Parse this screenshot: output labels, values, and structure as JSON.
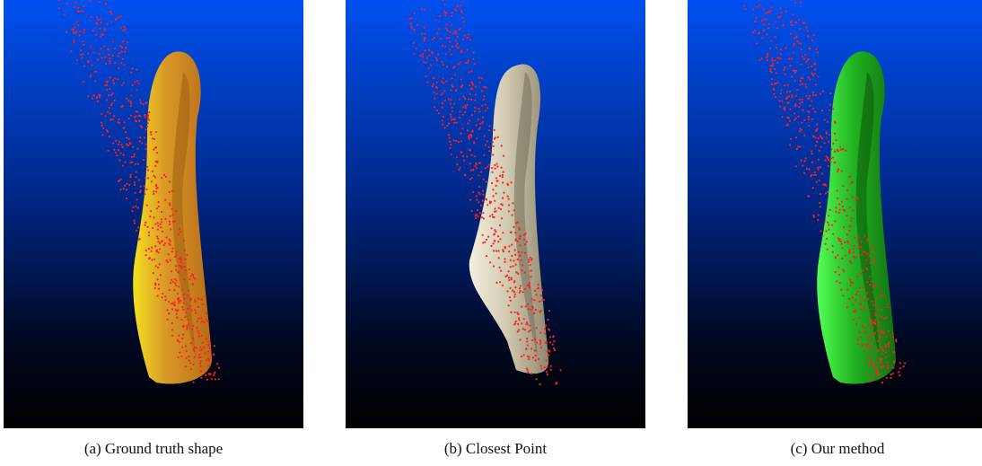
{
  "captions": [
    "(a) Ground truth shape",
    "(b) Closest Point",
    "(c) Our method"
  ]
}
